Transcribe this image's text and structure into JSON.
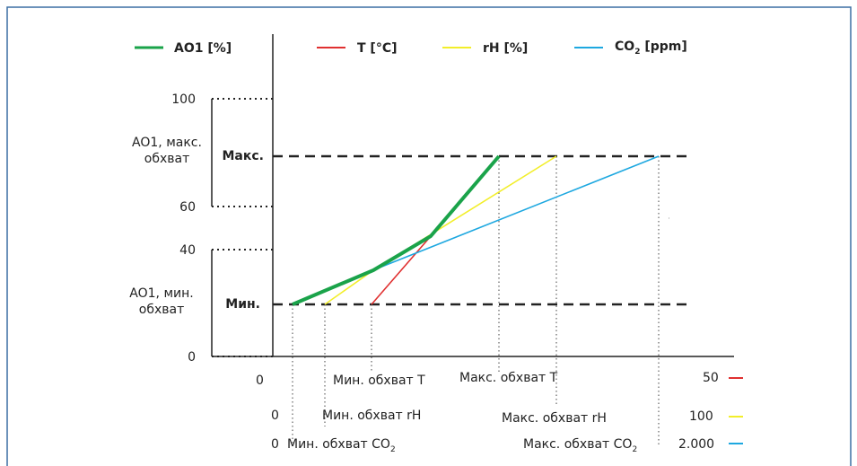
{
  "legend": {
    "ao1": "AO1 [%]",
    "t": "T [°C]",
    "rh": "rH [%]",
    "co2_main": "CO",
    "co2_sub": "2",
    "co2_unit": " [ppm]"
  },
  "y_ticks": {
    "t100": "100",
    "t60": "60",
    "t40": "40",
    "t0": "0"
  },
  "labels": {
    "max_range_l1": "AO1, макс.",
    "max_range_l2": "обхват",
    "min_range_l1": "AO1, мин.",
    "min_range_l2": "обхват",
    "max": "Макс.",
    "min": "Мин."
  },
  "x_rows": {
    "t_zero": "0",
    "t_min": "Мин. обхват T",
    "t_max": "Макс. обхват T",
    "t_end": "50",
    "rh_zero": "0",
    "rh_min": "Мин. обхват rH",
    "rh_max": "Макс. обхват rH",
    "rh_end": "100",
    "co2_zero": "0",
    "co2_min": "Мин. обхват CO",
    "co2_min_sub": "2",
    "co2_max": "Макс. обхват CO",
    "co2_max_sub": "2",
    "co2_end": "2.000"
  },
  "colors": {
    "ao1": "#1aa34a",
    "t": "#e03030",
    "rh": "#f2ee2a",
    "co2": "#1ea8e0",
    "frame": "#3b6fa3"
  }
}
